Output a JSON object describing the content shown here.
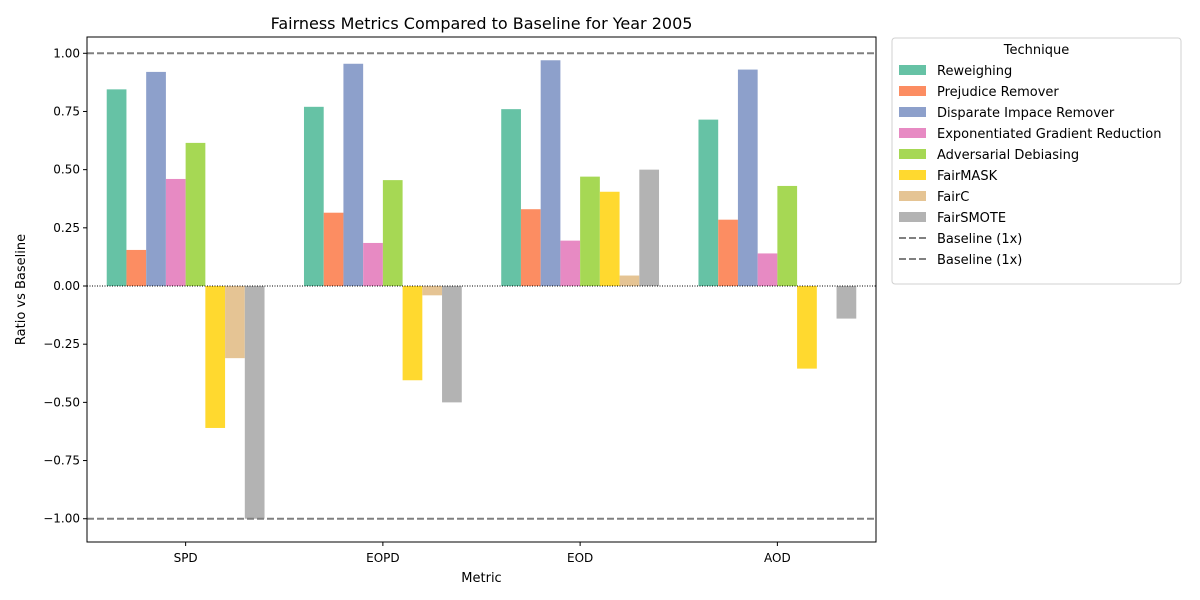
{
  "chart_data": {
    "type": "bar",
    "title": "Fairness Metrics Compared to Baseline for Year 2005",
    "xlabel": "Metric",
    "ylabel": "Ratio vs Baseline",
    "categories": [
      "SPD",
      "EOPD",
      "EOD",
      "AOD"
    ],
    "ylim": [
      -1.1,
      1.07
    ],
    "yticks": [
      -1.0,
      -0.75,
      -0.5,
      -0.25,
      0.0,
      0.25,
      0.5,
      0.75,
      1.0
    ],
    "ytick_labels": [
      "−1.00",
      "−0.75",
      "−0.50",
      "−0.25",
      "0.00",
      "0.25",
      "0.50",
      "0.75",
      "1.00"
    ],
    "grid": false,
    "legend_position": "outside-right",
    "legend_title": "Technique",
    "series": [
      {
        "name": "Reweighing",
        "color": "#66c2a5",
        "values": [
          0.845,
          0.77,
          0.76,
          0.715
        ]
      },
      {
        "name": "Prejudice Remover",
        "color": "#fc8d62",
        "values": [
          0.155,
          0.315,
          0.33,
          0.285
        ]
      },
      {
        "name": "Disparate Impace Remover",
        "color": "#8da0cb",
        "values": [
          0.92,
          0.955,
          0.97,
          0.93
        ]
      },
      {
        "name": "Exponentiated Gradient Reduction",
        "color": "#e78ac3",
        "values": [
          0.46,
          0.185,
          0.195,
          0.14
        ]
      },
      {
        "name": "Adversarial Debiasing",
        "color": "#a6d854",
        "values": [
          0.615,
          0.455,
          0.47,
          0.43
        ]
      },
      {
        "name": "FairMASK",
        "color": "#ffd92f",
        "values": [
          -0.61,
          -0.405,
          0.405,
          -0.355
        ]
      },
      {
        "name": "FairC",
        "color": "#e5c494",
        "values": [
          -0.31,
          -0.04,
          0.045,
          0.0
        ]
      },
      {
        "name": "FairSMOTE",
        "color": "#b3b3b3",
        "values": [
          -1.0,
          -0.5,
          0.5,
          -0.14
        ]
      }
    ],
    "reference_lines": [
      {
        "label": "Baseline (1x)",
        "y": 1.0,
        "color": "#808080",
        "style": "dashed"
      },
      {
        "label": "Baseline (1x)",
        "y": -1.0,
        "color": "#808080",
        "style": "dashed"
      }
    ]
  }
}
